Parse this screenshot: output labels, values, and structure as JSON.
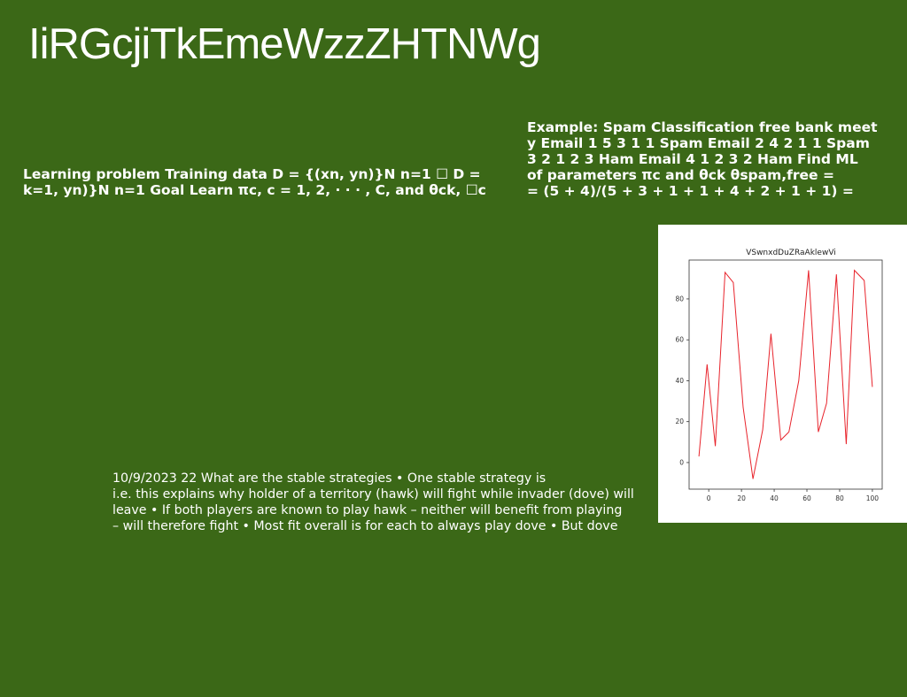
{
  "slide": {
    "title": "IiRGcjiTkEmeWzzZHTNWg",
    "left_text": [
      "Learning problem Training data D = {(xn, yn)}N n=1 ☐ D =",
      "k=1, yn)}N n=1 Goal Learn πc, c = 1, 2, · · · , C, and θck, ☐c"
    ],
    "right_text": [
      "Example: Spam Classification free bank meet",
      "y Email 1 5 3 1 1 Spam Email 2 4 2 1 1 Spam",
      "3 2 1 2 3 Ham Email 4 1 2 3 2 Ham Find ML",
      "of parameters πc and θck θspam,free =",
      "= (5 + 4)/(5 + 3 + 1 + 1 + 4 + 2 + 1 + 1) ="
    ],
    "bottom_text": [
      "10/9/2023 22 What are the stable strategies • One stable strategy is",
      "i.e. this explains why holder of a territory (hawk) will fight while invader (dove) will",
      "leave • If both players are known to play hawk – neither will benefit from playing",
      "– will therefore fight • Most fit overall is for each to always play dove • But dove"
    ]
  },
  "colors": {
    "background": "#3b6817",
    "text": "#ffffff",
    "line": "#e8242c"
  },
  "chart_data": {
    "type": "line",
    "title": "VSwnxdDuZRaAklewVi",
    "xlabel": "",
    "ylabel": "",
    "x": [
      -6,
      -1,
      4,
      10,
      15,
      21,
      27,
      33,
      38,
      44,
      49,
      55,
      61,
      67,
      72,
      78,
      84,
      89,
      95,
      100
    ],
    "series": [
      {
        "values": [
          3,
          48,
          8,
          93,
          88,
          27,
          -8,
          16,
          63,
          11,
          15,
          40,
          94,
          15,
          29,
          92,
          9,
          94,
          89,
          37
        ]
      }
    ],
    "xticks": [
      0,
      20,
      40,
      60,
      80,
      100
    ],
    "yticks": [
      0,
      20,
      40,
      60,
      80
    ],
    "xlim": [
      -12,
      106
    ],
    "ylim": [
      -13,
      99
    ],
    "grid": false
  }
}
